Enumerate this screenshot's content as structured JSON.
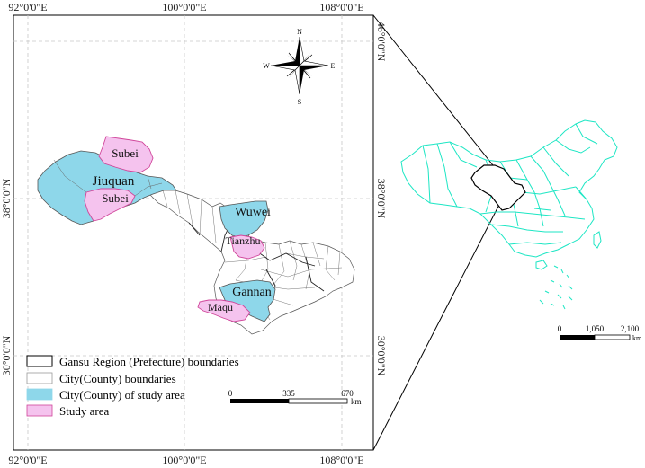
{
  "main_map": {
    "top_ticks": [
      "92°0'0\"E",
      "100°0'0\"E",
      "108°0'0\"E"
    ],
    "bottom_ticks": [
      "92°0'0\"E",
      "100°0'0\"E",
      "108°0'0\"E"
    ],
    "left_ticks": [
      "38°0'0\"N",
      "30°0'0\"N"
    ],
    "right_ticks": [
      "46°0'0\"N",
      "38°0'0\"N",
      "30°0'0\"N"
    ]
  },
  "north_arrow": {
    "n": "N",
    "s": "S",
    "e": "E",
    "w": "W"
  },
  "place_labels": {
    "subei_north": "Subei",
    "jiuquan": "Jiuquan",
    "subei_south": "Subei",
    "wuwei": "Wuwei",
    "tianzhu": "Tianzhu",
    "gannan": "Gannan",
    "maqu": "Maqu"
  },
  "legend": {
    "items": [
      {
        "label": "Gansu Region (Prefecture) boundaries"
      },
      {
        "label": "City(County) boundaries"
      },
      {
        "label": "City(County) of study area"
      },
      {
        "label": "Study area"
      }
    ]
  },
  "scalebar_main": {
    "ticks": [
      "0",
      "335",
      "670"
    ],
    "unit": "km"
  },
  "scalebar_inset": {
    "ticks": [
      "0",
      "1,050",
      "2,100"
    ],
    "unit": "km"
  },
  "colors": {
    "study_county_fill": "#8ed7ea",
    "study_area_fill": "#f5c3ee",
    "study_area_stroke": "#d0459a",
    "china_outline": "#1de6c4",
    "grid": "#c8c8c8"
  }
}
